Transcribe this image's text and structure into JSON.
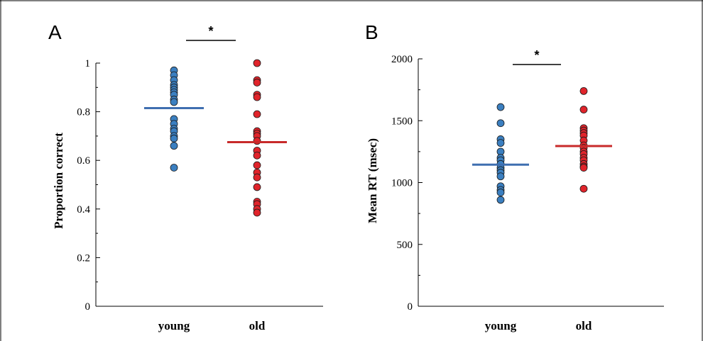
{
  "colors": {
    "young": "#3b7fc0",
    "old": "#e0242b",
    "young_mean": "#3f6fb0",
    "old_mean": "#c82a2a"
  },
  "chart_data": [
    {
      "type": "scatter",
      "panel": "A",
      "ylabel": "Proportion correct",
      "categories": [
        "young",
        "old"
      ],
      "ylim": [
        0,
        1
      ],
      "yticks": [
        0,
        0.2,
        0.4,
        0.6,
        0.8,
        1
      ],
      "tick_labels": [
        "0",
        "0.2",
        "0.4",
        "0.6",
        "0.8",
        "1"
      ],
      "significance": "*",
      "series": [
        {
          "category": "young",
          "mean": 0.815,
          "values": [
            0.97,
            0.95,
            0.93,
            0.91,
            0.9,
            0.89,
            0.88,
            0.87,
            0.85,
            0.84,
            0.77,
            0.75,
            0.73,
            0.72,
            0.7,
            0.69,
            0.66,
            0.57
          ]
        },
        {
          "category": "old",
          "mean": 0.675,
          "values": [
            1.0,
            0.93,
            0.92,
            0.87,
            0.86,
            0.79,
            0.72,
            0.71,
            0.7,
            0.68,
            0.64,
            0.62,
            0.58,
            0.55,
            0.53,
            0.49,
            0.43,
            0.42,
            0.4,
            0.385
          ]
        }
      ]
    },
    {
      "type": "scatter",
      "panel": "B",
      "ylabel": "Mean RT (msec)",
      "categories": [
        "young",
        "old"
      ],
      "ylim": [
        0,
        2000
      ],
      "yticks": [
        0,
        500,
        1000,
        1500,
        2000
      ],
      "tick_labels": [
        "0",
        "500",
        "1000",
        "1500",
        "2000"
      ],
      "significance": "*",
      "series": [
        {
          "category": "young",
          "mean": 1145,
          "values": [
            1610,
            1480,
            1350,
            1320,
            1250,
            1200,
            1180,
            1150,
            1120,
            1100,
            1080,
            1050,
            970,
            940,
            920,
            860
          ]
        },
        {
          "category": "old",
          "mean": 1295,
          "values": [
            1740,
            1590,
            1440,
            1420,
            1400,
            1380,
            1340,
            1300,
            1280,
            1250,
            1230,
            1200,
            1180,
            1150,
            1130,
            1120,
            950
          ]
        }
      ]
    }
  ]
}
